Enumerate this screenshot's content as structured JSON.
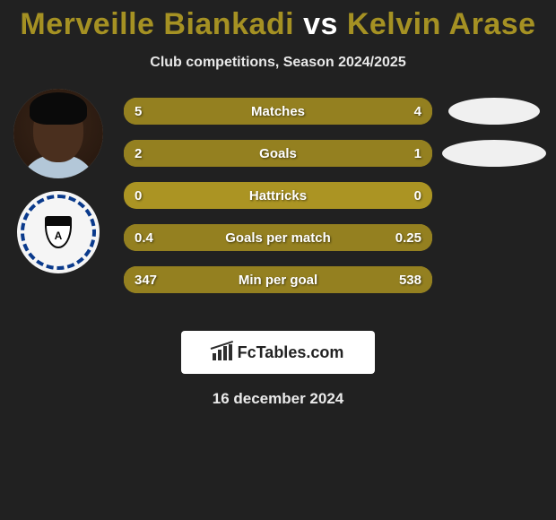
{
  "title": {
    "player1": "Merveille Biankadi",
    "vs": "vs",
    "player2": "Kelvin Arase",
    "color_player1": "#a59123",
    "color_vs": "#ffffff",
    "color_player2": "#a59123"
  },
  "subtitle": "Club competitions, Season 2024/2025",
  "bars": [
    {
      "label": "Matches",
      "left": "5",
      "right": "4",
      "leftNum": 5,
      "rightNum": 4
    },
    {
      "label": "Goals",
      "left": "2",
      "right": "1",
      "leftNum": 2,
      "rightNum": 1
    },
    {
      "label": "Hattricks",
      "left": "0",
      "right": "0",
      "leftNum": 0,
      "rightNum": 0
    },
    {
      "label": "Goals per match",
      "left": "0.4",
      "right": "0.25",
      "leftNum": 0.4,
      "rightNum": 0.25
    },
    {
      "label": "Min per goal",
      "left": "347",
      "right": "538",
      "leftNum": 347,
      "rightNum": 538
    }
  ],
  "bar_style": {
    "track_color": "#ab9423",
    "fill_left_color": "#948020",
    "fill_right_color": "#948020",
    "text_color": "#ffffff"
  },
  "right_ellipses": [
    {
      "color": "#f0f0f0",
      "widthPct": 86
    },
    {
      "color": "#f0f0f0",
      "widthPct": 98
    }
  ],
  "club_badge_letter": "A",
  "footer": {
    "brand": "FcTables.com",
    "date": "16 december 2024"
  },
  "colors": {
    "background": "#212121",
    "title_text": "#ffffff"
  }
}
